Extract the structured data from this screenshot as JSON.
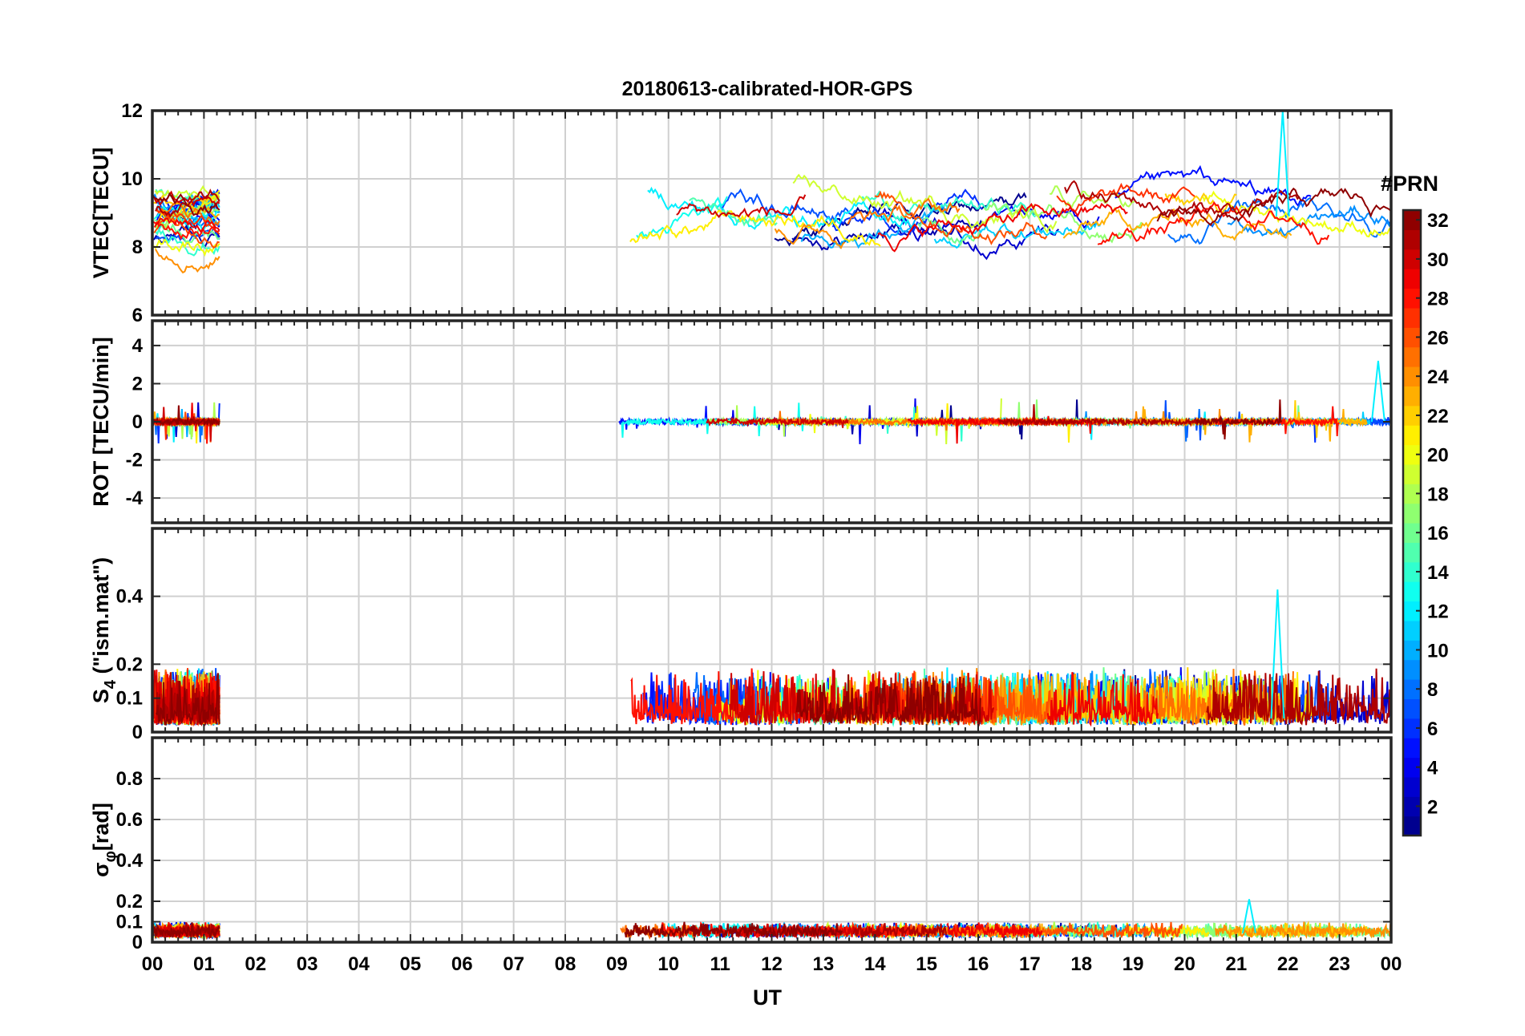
{
  "chart_data": {
    "type": "line",
    "title": "20180613-calibrated-HOR-GPS",
    "xlabel": "UT",
    "x_ticks": [
      "00",
      "01",
      "02",
      "03",
      "04",
      "05",
      "06",
      "07",
      "08",
      "09",
      "10",
      "11",
      "12",
      "13",
      "14",
      "15",
      "16",
      "17",
      "18",
      "19",
      "20",
      "21",
      "22",
      "23",
      "00"
    ],
    "xlim_hours": [
      0,
      24
    ],
    "data_segments_hours": [
      [
        0.0,
        1.3
      ],
      [
        8.95,
        24.0
      ]
    ],
    "panels": [
      {
        "name": "vtec",
        "ylabel": "VTEC[TECU]",
        "ylim": [
          6,
          12
        ],
        "y_ticks": [
          6,
          8,
          10,
          12
        ],
        "y_tick_labels": [
          "6",
          "8",
          "10",
          "12"
        ],
        "baseline": 8.9,
        "spread": 0.9,
        "drift": 0.14,
        "spike": {
          "time": 21.9,
          "value": 12.0
        }
      },
      {
        "name": "rot",
        "ylabel": "ROT [TECU/min]",
        "ylim": [
          -5.3,
          5.3
        ],
        "y_ticks": [
          -4,
          -2,
          0,
          2,
          4
        ],
        "y_tick_labels": [
          "-4",
          "-2",
          "0",
          "2",
          "4"
        ],
        "baseline": 0.0,
        "spread": 0.08,
        "noise": 0.12,
        "spike": {
          "time": 23.75,
          "value": 3.2
        }
      },
      {
        "name": "s4",
        "ylabel": "S4 (\"ism.mat\")",
        "ylabel_main": "S",
        "ylabel_sub": "4",
        "ylabel_rest": " (\"ism.mat\")",
        "ylim": [
          0,
          0.6
        ],
        "y_ticks": [
          0,
          0.1,
          0.2,
          0.4
        ],
        "y_tick_labels": [
          "0",
          "0.1",
          "0.2",
          "0.4"
        ],
        "baseline": 0.04,
        "noise": 0.06,
        "spike": {
          "time": 21.8,
          "value": 0.42
        }
      },
      {
        "name": "sigma_phi",
        "ylabel": "σφ[rad]",
        "ylabel_main": "σ",
        "ylabel_sub": "φ",
        "ylabel_rest": "[rad]",
        "ylim": [
          0,
          1.0
        ],
        "y_ticks": [
          0,
          0.1,
          0.2,
          0.4,
          0.6,
          0.8
        ],
        "y_tick_labels": [
          "0",
          "0.1",
          "0.2",
          "0.4",
          "0.6",
          "0.8"
        ],
        "baseline": 0.045,
        "noise": 0.015,
        "spike": {
          "time": 21.25,
          "value": 0.21
        }
      }
    ],
    "series_count": 32,
    "series_name_prefix": "PRN ",
    "colorbar": {
      "label": "#PRN",
      "range": [
        1,
        32
      ],
      "ticks": [
        2,
        4,
        6,
        8,
        10,
        12,
        14,
        16,
        18,
        20,
        22,
        24,
        26,
        28,
        30,
        32
      ],
      "tick_labels": [
        "2",
        "4",
        "6",
        "8",
        "10",
        "12",
        "14",
        "16",
        "18",
        "20",
        "22",
        "24",
        "26",
        "28",
        "30",
        "32"
      ],
      "colormap": "jet"
    }
  }
}
